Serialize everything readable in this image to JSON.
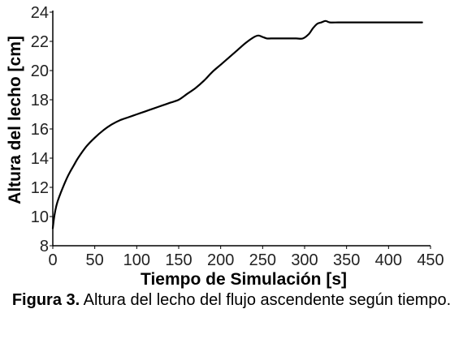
{
  "chart_data": {
    "type": "line",
    "xlabel": "Tiempo de Simulación [s]",
    "ylabel": "Altura del lecho [cm]",
    "xlim": [
      0,
      450
    ],
    "ylim": [
      8,
      24
    ],
    "x_ticks": [
      0,
      50,
      100,
      150,
      200,
      250,
      300,
      350,
      400,
      450
    ],
    "y_ticks": [
      8,
      10,
      12,
      14,
      16,
      18,
      20,
      22,
      24
    ],
    "grid": false,
    "legend": "none",
    "series": [
      {
        "color": "#000000",
        "x": [
          0,
          2,
          5,
          10,
          15,
          20,
          25,
          30,
          40,
          50,
          60,
          70,
          80,
          90,
          100,
          110,
          120,
          130,
          140,
          150,
          160,
          170,
          180,
          190,
          200,
          210,
          220,
          230,
          240,
          245,
          250,
          255,
          260,
          270,
          280,
          290,
          298,
          305,
          310,
          315,
          320,
          325,
          330,
          340,
          350,
          375,
          400,
          425,
          440
        ],
        "y": [
          9.2,
          10.1,
          10.9,
          11.7,
          12.4,
          13.0,
          13.5,
          14.0,
          14.8,
          15.4,
          15.9,
          16.3,
          16.6,
          16.8,
          17.0,
          17.2,
          17.4,
          17.6,
          17.8,
          18.0,
          18.4,
          18.8,
          19.3,
          19.9,
          20.4,
          20.9,
          21.4,
          21.9,
          22.3,
          22.4,
          22.3,
          22.2,
          22.2,
          22.2,
          22.2,
          22.2,
          22.2,
          22.5,
          22.9,
          23.2,
          23.3,
          23.4,
          23.3,
          23.3,
          23.3,
          23.3,
          23.3,
          23.3,
          23.3
        ]
      }
    ]
  },
  "caption": {
    "label": "Figura 3.",
    "text": " Altura del lecho del flujo ascendente según tiempo."
  }
}
